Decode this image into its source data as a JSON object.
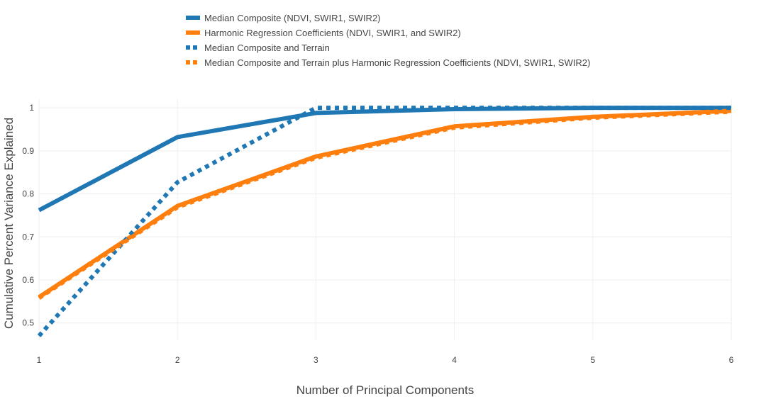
{
  "chart_data": {
    "type": "line",
    "title": "",
    "xlabel": "Number of Principal Components",
    "ylabel": "Cumulative Percent Variance Explained",
    "x": [
      1,
      2,
      3,
      4,
      5,
      6
    ],
    "x_ticks": [
      "1",
      "2",
      "3",
      "4",
      "5",
      "6"
    ],
    "y_ticks": [
      "0.5",
      "0.6",
      "0.7",
      "0.8",
      "0.9",
      "1"
    ],
    "xlim": [
      1,
      6
    ],
    "ylim": [
      0.46,
      1.02
    ],
    "grid": true,
    "legend_position": "top-center",
    "series": [
      {
        "name": "Median Composite (NDVI, SWIR1, SWIR2)",
        "values": [
          0.762,
          0.932,
          0.988,
          0.997,
          1.0,
          1.0
        ],
        "color": "#1f77b4",
        "dash": "solid"
      },
      {
        "name": "Harmonic Regression Coefficients (NDVI, SWIR1, and SWIR2)",
        "values": [
          0.56,
          0.772,
          0.887,
          0.957,
          0.979,
          0.993
        ],
        "color": "#ff7f0e",
        "dash": "solid"
      },
      {
        "name": "Median Composite and Terrain",
        "values": [
          0.47,
          0.827,
          1.0,
          1.0,
          1.0,
          1.0
        ],
        "color": "#1f77b4",
        "dash": "dotted"
      },
      {
        "name": "Median Composite and Terrain plus Harmonic Regression Coefficients (NDVI, SWIR1, SWIR2)",
        "values": [
          0.558,
          0.769,
          0.884,
          0.954,
          0.977,
          0.991
        ],
        "color": "#ff7f0e",
        "dash": "dotted"
      }
    ]
  }
}
